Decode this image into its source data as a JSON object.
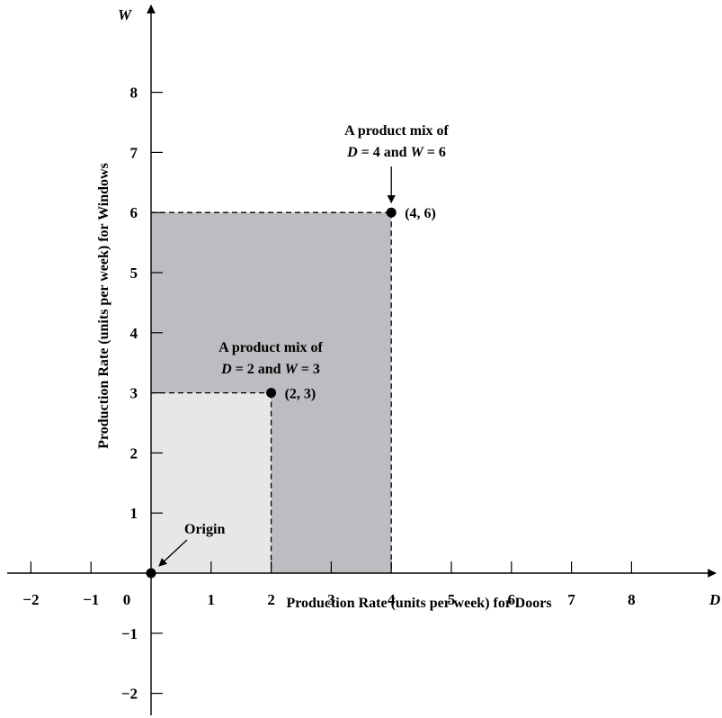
{
  "chart_data": {
    "type": "scatter",
    "title": "",
    "xlabel": "Production Rate (units per week) for Doors",
    "ylabel": "Production Rate (units per week) for Windows",
    "x_axis_variable": "D",
    "y_axis_variable": "W",
    "xlim": [
      -2,
      9.5
    ],
    "ylim": [
      -2.4,
      9.3
    ],
    "x_ticks": [
      -2,
      -1,
      1,
      2,
      3,
      4,
      5,
      6,
      7,
      8
    ],
    "y_ticks": [
      -2,
      -1,
      1,
      2,
      3,
      4,
      5,
      6,
      7,
      8
    ],
    "origin_tick_label": "0",
    "grid": false,
    "points": [
      {
        "x": 0,
        "y": 0,
        "label": ""
      },
      {
        "x": 2,
        "y": 3,
        "label": "(2, 3)"
      },
      {
        "x": 4,
        "y": 6,
        "label": "(4, 6)"
      }
    ],
    "regions": [
      {
        "x": [
          0,
          4
        ],
        "y": [
          0,
          6
        ],
        "color": "#bcbdc0"
      },
      {
        "x": [
          0,
          2
        ],
        "y": [
          0,
          3
        ],
        "color": "#e6e7e8"
      }
    ],
    "annotations": [
      {
        "id": "origin",
        "text": "Origin",
        "target": [
          0,
          0
        ]
      },
      {
        "id": "mix46",
        "line1": "A product mix of",
        "line2": [
          "D",
          " = 4 and ",
          "W",
          " = 6"
        ],
        "target": [
          4,
          6
        ]
      },
      {
        "id": "mix23",
        "line1": "A product mix of",
        "line2": [
          "D",
          " = 2 and ",
          "W",
          " = 3"
        ],
        "target": [
          2,
          3
        ]
      }
    ]
  }
}
